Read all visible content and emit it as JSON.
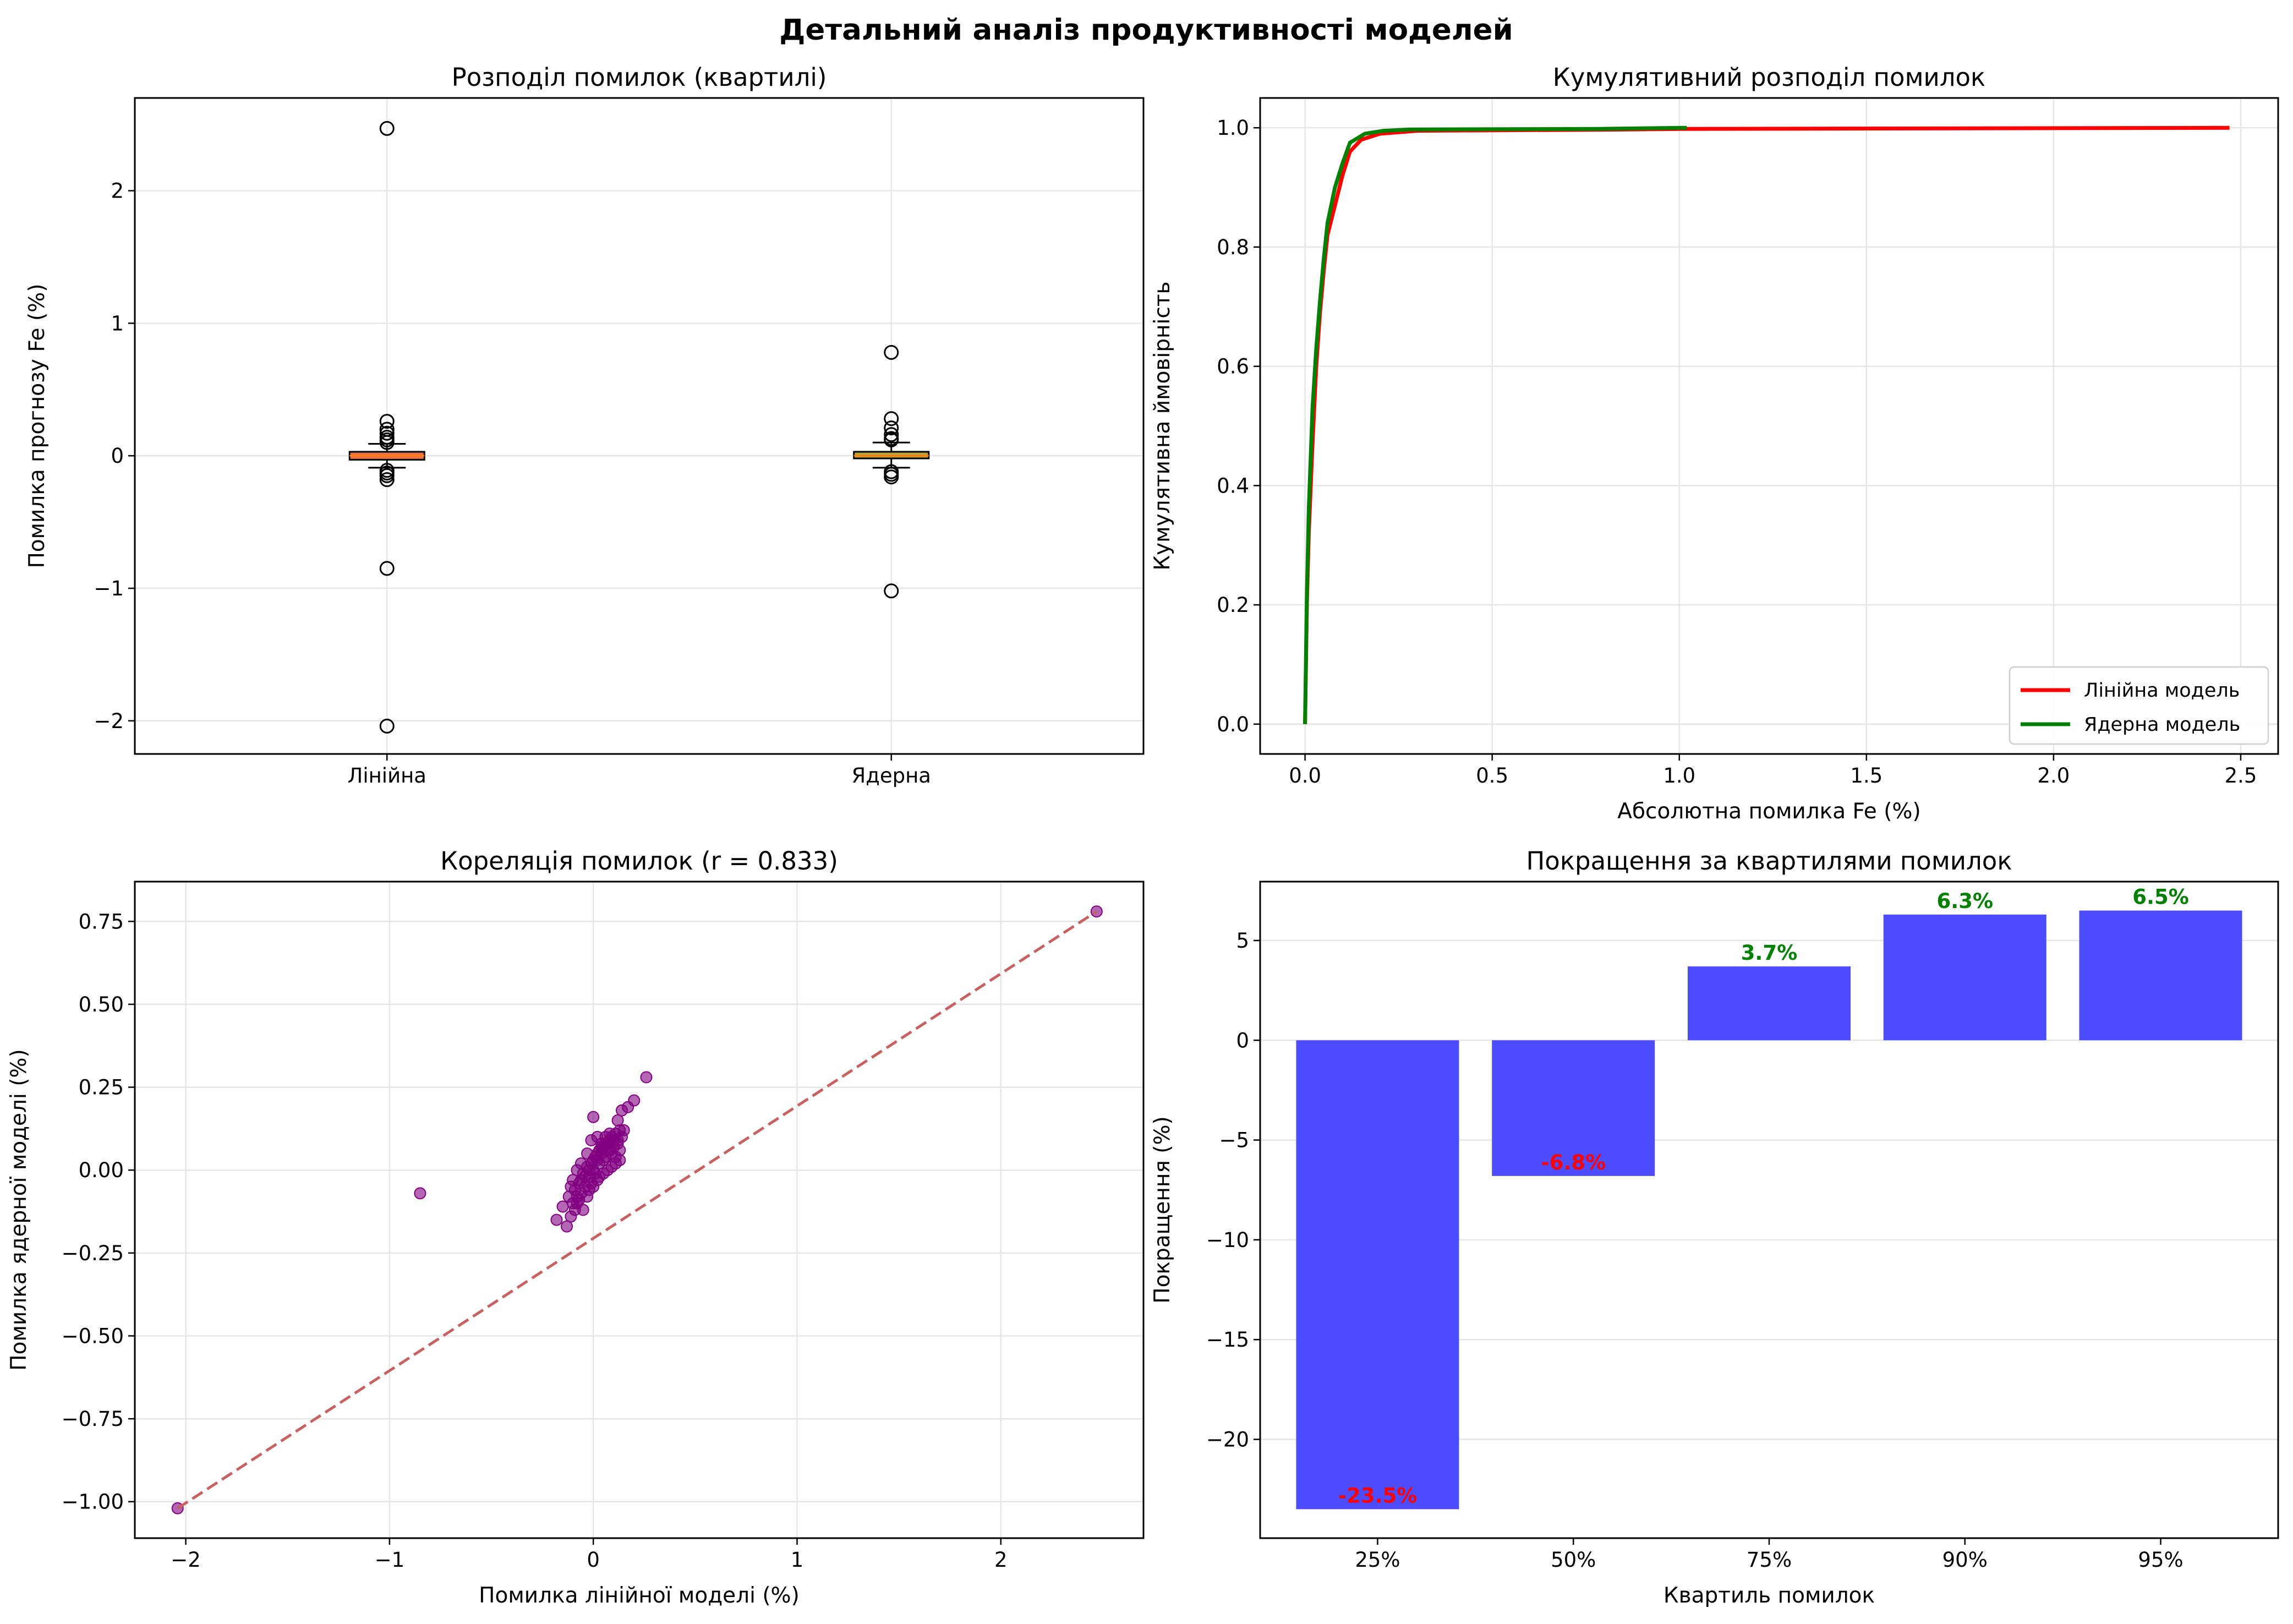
{
  "suptitle": "Детальний аналіз продуктивності моделей",
  "chart_data": [
    {
      "type": "box",
      "title": "Розподіл помилок (квартилі)",
      "xlabel": "",
      "ylabel": "Помилка прогнозу Fe (%)",
      "categories": [
        "Лінійна",
        "Ядерна"
      ],
      "ylim": [
        -2.25,
        2.7
      ],
      "yticks": [
        -2,
        -1,
        0,
        1,
        2
      ],
      "yticklabels": [
        "−2",
        "−1",
        "0",
        "1",
        "2"
      ],
      "grid": true,
      "boxes": [
        {
          "name": "Лінійна",
          "color": "#e8724a",
          "q1": -0.03,
          "median": 0.0,
          "q3": 0.03,
          "whisker_low": -0.09,
          "whisker_high": 0.09,
          "outliers": [
            2.47,
            0.26,
            0.2,
            0.17,
            0.14,
            0.12,
            0.1,
            -0.11,
            -0.13,
            -0.15,
            -0.18,
            -0.85,
            -2.04
          ]
        },
        {
          "name": "Ядерна",
          "color": "#b9a53c",
          "q1": -0.02,
          "median": 0.0,
          "q3": 0.03,
          "whisker_low": -0.09,
          "whisker_high": 0.1,
          "outliers": [
            0.78,
            0.28,
            0.21,
            0.16,
            0.13,
            0.12,
            -0.12,
            -0.14,
            -0.16,
            -1.02
          ]
        }
      ]
    },
    {
      "type": "line",
      "title": "Кумулятивний розподіл помилок",
      "xlabel": "Абсолютна помилка Fe (%)",
      "ylabel": "Кумулятивна ймовірність",
      "xlim": [
        -0.12,
        2.6
      ],
      "ylim": [
        -0.05,
        1.05
      ],
      "xticks": [
        0.0,
        0.5,
        1.0,
        1.5,
        2.0,
        2.5
      ],
      "xticklabels": [
        "0.0",
        "0.5",
        "1.0",
        "1.5",
        "2.0",
        "2.5"
      ],
      "yticks": [
        0.0,
        0.2,
        0.4,
        0.6,
        0.8,
        1.0
      ],
      "yticklabels": [
        "0.0",
        "0.2",
        "0.4",
        "0.6",
        "0.8",
        "1.0"
      ],
      "grid": true,
      "legend": "lower right",
      "series": [
        {
          "name": "Лінійна модель",
          "color": "#ff0000",
          "points": [
            [
              0,
              0
            ],
            [
              0.005,
              0.2
            ],
            [
              0.01,
              0.32
            ],
            [
              0.02,
              0.47
            ],
            [
              0.03,
              0.6
            ],
            [
              0.04,
              0.69
            ],
            [
              0.05,
              0.76
            ],
            [
              0.06,
              0.82
            ],
            [
              0.08,
              0.87
            ],
            [
              0.1,
              0.92
            ],
            [
              0.12,
              0.96
            ],
            [
              0.15,
              0.98
            ],
            [
              0.2,
              0.99
            ],
            [
              0.3,
              0.995
            ],
            [
              0.85,
              0.997
            ],
            [
              1.0,
              0.998
            ],
            [
              2.47,
              1.0
            ]
          ]
        },
        {
          "name": "Ядерна модель",
          "color": "#008000",
          "points": [
            [
              0,
              0
            ],
            [
              0.005,
              0.22
            ],
            [
              0.01,
              0.36
            ],
            [
              0.02,
              0.53
            ],
            [
              0.03,
              0.63
            ],
            [
              0.04,
              0.71
            ],
            [
              0.05,
              0.78
            ],
            [
              0.06,
              0.84
            ],
            [
              0.08,
              0.9
            ],
            [
              0.1,
              0.94
            ],
            [
              0.12,
              0.975
            ],
            [
              0.16,
              0.99
            ],
            [
              0.21,
              0.995
            ],
            [
              0.28,
              0.997
            ],
            [
              0.78,
              0.998
            ],
            [
              1.02,
              1.0
            ]
          ]
        }
      ]
    },
    {
      "type": "scatter",
      "title": "Кореляція помилок (r = 0.833)",
      "xlabel": "Помилка лінійної моделі (%)",
      "ylabel": "Помилка ядерної моделі (%)",
      "xlim": [
        -2.25,
        2.7
      ],
      "ylim": [
        -1.11,
        0.87
      ],
      "xticks": [
        -2,
        -1,
        0,
        1,
        2
      ],
      "xticklabels": [
        "−2",
        "−1",
        "0",
        "1",
        "2"
      ],
      "yticks": [
        -1.0,
        -0.75,
        -0.5,
        -0.25,
        0.0,
        0.25,
        0.5,
        0.75
      ],
      "yticklabels": [
        "−1.00",
        "−0.75",
        "−0.50",
        "−0.25",
        "0.00",
        "0.25",
        "0.50",
        "0.75"
      ],
      "grid": true,
      "point_color": "#800080",
      "line_color": "#c76262",
      "diagonal": [
        [
          -2.04,
          -1.02
        ],
        [
          2.47,
          0.78
        ]
      ],
      "points": [
        [
          2.47,
          0.78
        ],
        [
          -2.04,
          -1.02
        ],
        [
          -0.85,
          -0.07
        ],
        [
          0.26,
          0.28
        ],
        [
          0.2,
          0.21
        ],
        [
          0.17,
          0.19
        ],
        [
          0.14,
          0.18
        ],
        [
          0.12,
          0.15
        ],
        [
          0.0,
          0.16
        ],
        [
          -0.11,
          -0.14
        ],
        [
          -0.13,
          -0.17
        ],
        [
          -0.15,
          -0.11
        ],
        [
          -0.18,
          -0.15
        ],
        [
          -0.1,
          -0.03
        ],
        [
          -0.08,
          -0.1
        ],
        [
          -0.06,
          -0.07
        ],
        [
          -0.05,
          -0.12
        ],
        [
          -0.04,
          -0.05
        ],
        [
          -0.03,
          -0.08
        ],
        [
          -0.02,
          -0.02
        ],
        [
          -0.01,
          -0.04
        ],
        [
          0.0,
          0.0
        ],
        [
          0.01,
          -0.01
        ],
        [
          0.02,
          0.03
        ],
        [
          0.03,
          0.02
        ],
        [
          0.04,
          0.05
        ],
        [
          0.05,
          0.03
        ],
        [
          0.06,
          0.08
        ],
        [
          0.07,
          0.06
        ],
        [
          0.08,
          0.09
        ],
        [
          0.09,
          0.1
        ],
        [
          0.1,
          0.07
        ],
        [
          0.11,
          0.11
        ],
        [
          0.12,
          0.09
        ],
        [
          0.13,
          0.12
        ],
        [
          0.14,
          0.1
        ],
        [
          -0.09,
          -0.06
        ],
        [
          -0.07,
          -0.04
        ],
        [
          -0.05,
          -0.01
        ],
        [
          -0.03,
          0.01
        ],
        [
          -0.01,
          0.02
        ],
        [
          0.01,
          0.04
        ],
        [
          0.03,
          0.06
        ],
        [
          0.05,
          0.07
        ],
        [
          0.07,
          0.08
        ],
        [
          0.09,
          0.05
        ],
        [
          0.11,
          0.04
        ],
        [
          0.13,
          0.06
        ],
        [
          -0.12,
          -0.08
        ],
        [
          -0.1,
          -0.1
        ],
        [
          -0.08,
          -0.08
        ],
        [
          -0.06,
          -0.03
        ],
        [
          -0.04,
          -0.02
        ],
        [
          -0.02,
          0.0
        ],
        [
          0.0,
          0.03
        ],
        [
          0.02,
          0.05
        ],
        [
          0.04,
          0.07
        ],
        [
          0.06,
          0.04
        ],
        [
          0.08,
          0.06
        ],
        [
          0.1,
          0.09
        ],
        [
          0.12,
          0.08
        ],
        [
          0.15,
          0.12
        ],
        [
          -0.01,
          0.09
        ],
        [
          0.02,
          0.1
        ],
        [
          0.04,
          0.08
        ],
        [
          0.06,
          0.1
        ],
        [
          0.08,
          0.11
        ],
        [
          -0.03,
          0.05
        ],
        [
          -0.06,
          0.02
        ],
        [
          -0.08,
          0.0
        ],
        [
          0.03,
          -0.02
        ],
        [
          0.05,
          -0.01
        ],
        [
          0.07,
          0.0
        ],
        [
          0.09,
          0.01
        ],
        [
          0.11,
          0.02
        ],
        [
          0.13,
          0.03
        ],
        [
          -0.02,
          -0.06
        ],
        [
          0.0,
          -0.05
        ],
        [
          0.02,
          -0.03
        ],
        [
          -0.07,
          -0.09
        ],
        [
          -0.11,
          -0.05
        ],
        [
          -0.09,
          -0.12
        ]
      ]
    },
    {
      "type": "bar",
      "title": "Покращення за квартилями помилок",
      "xlabel": "Квартиль помилок",
      "ylabel": "Покращення (%)",
      "categories": [
        "25%",
        "50%",
        "75%",
        "90%",
        "95%"
      ],
      "values": [
        -23.5,
        -6.8,
        3.7,
        6.3,
        6.5
      ],
      "value_labels": [
        "-23.5%",
        "-6.8%",
        "3.7%",
        "6.3%",
        "6.5%"
      ],
      "ylim": [
        -24.95,
        7.95
      ],
      "yticks": [
        -20,
        -15,
        -10,
        -5,
        0,
        5
      ],
      "yticklabels": [
        "−20",
        "−15",
        "−10",
        "−5",
        "0",
        "5"
      ],
      "grid": true,
      "bar_color": "#4d4dff",
      "positive_label_color": "#008000",
      "negative_label_color": "#ff0000"
    }
  ]
}
